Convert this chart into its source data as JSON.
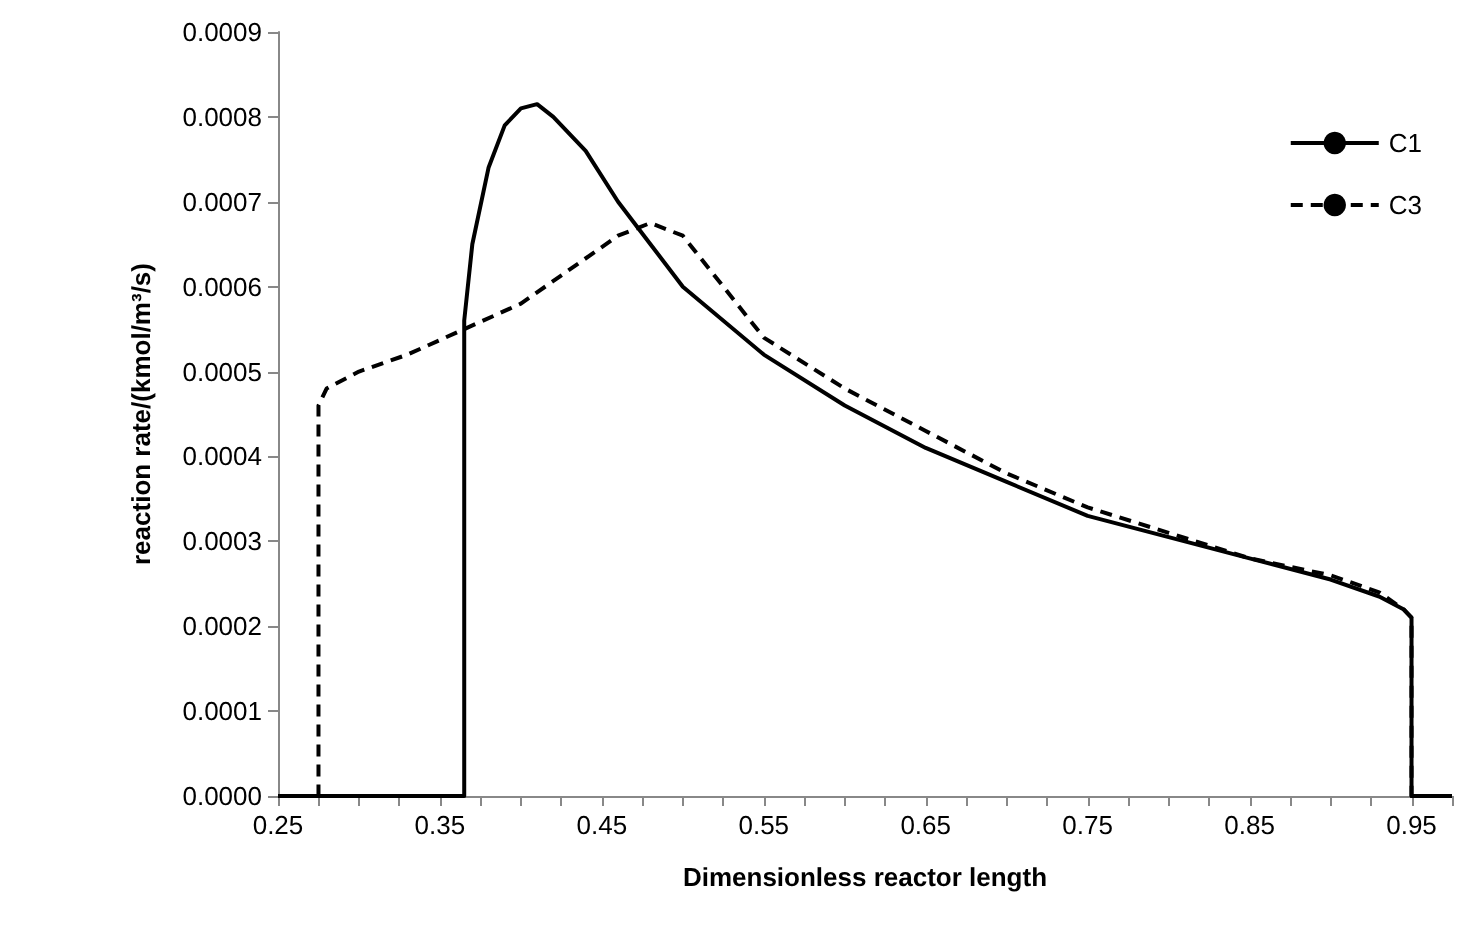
{
  "chart_data": {
    "type": "line",
    "xlabel": "Dimensionless reactor length",
    "ylabel": "reaction rate/(kmol/m³/s)",
    "xlim": [
      0.25,
      0.975
    ],
    "xticks": [
      0.25,
      {
        "value": 0.275,
        "label": null
      },
      {
        "value": 0.3,
        "label": null
      },
      {
        "value": 0.325,
        "label": null
      },
      0.35,
      {
        "value": 0.375,
        "label": null
      },
      {
        "value": 0.4,
        "label": null
      },
      {
        "value": 0.425,
        "label": null
      },
      0.45,
      {
        "value": 0.475,
        "label": null
      },
      {
        "value": 0.5,
        "label": null
      },
      {
        "value": 0.525,
        "label": null
      },
      0.55,
      {
        "value": 0.575,
        "label": null
      },
      {
        "value": 0.6,
        "label": null
      },
      {
        "value": 0.625,
        "label": null
      },
      0.65,
      {
        "value": 0.675,
        "label": null
      },
      {
        "value": 0.7,
        "label": null
      },
      {
        "value": 0.725,
        "label": null
      },
      0.75,
      {
        "value": 0.775,
        "label": null
      },
      {
        "value": 0.8,
        "label": null
      },
      {
        "value": 0.825,
        "label": null
      },
      0.85,
      {
        "value": 0.875,
        "label": null
      },
      {
        "value": 0.9,
        "label": null
      },
      {
        "value": 0.925,
        "label": null
      },
      0.95,
      {
        "value": 0.975,
        "label": null
      }
    ],
    "ylim": [
      0,
      0.0009
    ],
    "yticks": [
      {
        "value": 0,
        "label": "0.0000"
      },
      {
        "value": 0.0001,
        "label": "0.0001"
      },
      {
        "value": 0.0002,
        "label": "0.0002"
      },
      {
        "value": 0.0003,
        "label": "0.0003"
      },
      {
        "value": 0.0004,
        "label": "0.0004"
      },
      {
        "value": 0.0005,
        "label": "0.0005"
      },
      {
        "value": 0.0006,
        "label": "0.0006"
      },
      {
        "value": 0.0007,
        "label": "0.0007"
      },
      {
        "value": 0.0008,
        "label": "0.0008"
      },
      {
        "value": 0.0009,
        "label": "0.0009"
      }
    ],
    "grid": false,
    "legend": "top right",
    "marker": "none",
    "series": [
      {
        "name": "C1",
        "color": "#000000",
        "line_style": "solid",
        "x": [
          0.25,
          0.365,
          0.365,
          0.37,
          0.38,
          0.39,
          0.4,
          0.41,
          0.42,
          0.44,
          0.46,
          0.48,
          0.5,
          0.55,
          0.6,
          0.65,
          0.7,
          0.75,
          0.8,
          0.85,
          0.9,
          0.93,
          0.945,
          0.95,
          0.95,
          0.975
        ],
        "values": [
          0,
          0,
          0.00056,
          0.00065,
          0.00074,
          0.00079,
          0.00081,
          0.000815,
          0.0008,
          0.00076,
          0.0007,
          0.00065,
          0.0006,
          0.00052,
          0.00046,
          0.00041,
          0.00037,
          0.00033,
          0.000305,
          0.00028,
          0.000255,
          0.000235,
          0.00022,
          0.00021,
          0,
          0
        ]
      },
      {
        "name": "C3",
        "color": "#000000",
        "line_style": "dashed",
        "x": [
          0.25,
          0.275,
          0.275,
          0.28,
          0.3,
          0.33,
          0.365,
          0.4,
          0.43,
          0.46,
          0.48,
          0.5,
          0.55,
          0.6,
          0.65,
          0.7,
          0.75,
          0.8,
          0.85,
          0.9,
          0.93,
          0.945,
          0.95,
          0.95,
          0.975
        ],
        "values": [
          0,
          0,
          0.00046,
          0.00048,
          0.0005,
          0.00052,
          0.00055,
          0.00058,
          0.00062,
          0.00066,
          0.000675,
          0.00066,
          0.00054,
          0.00048,
          0.00043,
          0.00038,
          0.00034,
          0.00031,
          0.00028,
          0.00026,
          0.00024,
          0.00022,
          0.00021,
          0,
          0
        ]
      }
    ]
  }
}
